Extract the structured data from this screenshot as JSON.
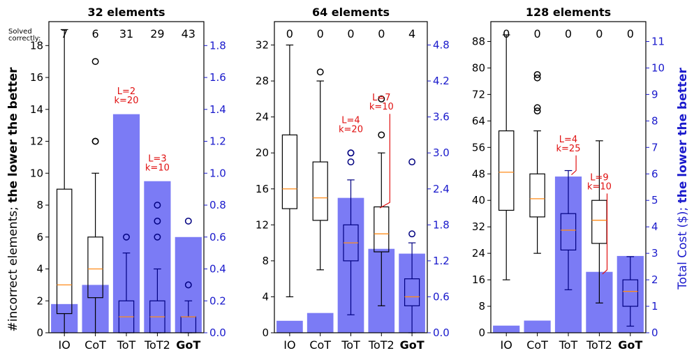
{
  "figure": {
    "left_ylabel_plain": "#incorrect elements; ",
    "left_ylabel_bold": "the lower the better",
    "right_ylabel_plain": "Total Cost ($); ",
    "right_ylabel_bold": "the lower the better",
    "solved_label_line1": "Solved",
    "solved_label_line2": "correctly:",
    "colors": {
      "bar": "#7b7bf5",
      "box_outline": "#000000",
      "median": "#ff8c1a",
      "cost_axis": "#1a1acc",
      "annotation": "#e01010",
      "box_on_bar": "#000080"
    }
  },
  "chart_data": [
    {
      "type": "bar",
      "title": "32 elements",
      "categories": [
        "IO",
        "CoT",
        "ToT",
        "ToT2",
        "GoT"
      ],
      "bold_category": "GoT",
      "left_ylim": [
        0,
        19.5
      ],
      "left_ticks": [
        0,
        2,
        4,
        6,
        8,
        10,
        12,
        14,
        16,
        18
      ],
      "right_ylim": [
        0,
        1.95
      ],
      "right_ticks": [
        "0.0",
        "0.2",
        "0.4",
        "0.6",
        "0.8",
        "1.0",
        "1.2",
        "1.4",
        "1.6",
        "1.8"
      ],
      "solved": [
        "7",
        "6",
        "31",
        "29",
        "43"
      ],
      "cost": [
        0.18,
        0.3,
        1.37,
        0.95,
        0.6
      ],
      "boxes": [
        {
          "whislo": 0,
          "q1": 1.2,
          "med": 3,
          "q3": 9,
          "whishi": 19,
          "fliers": []
        },
        {
          "whislo": 0,
          "q1": 2.2,
          "med": 4,
          "q3": 6,
          "whishi": 10,
          "fliers": [
            12,
            12,
            17
          ]
        },
        {
          "whislo": 0,
          "q1": 0,
          "med": 1,
          "q3": 2,
          "whishi": 5,
          "fliers": [
            6
          ]
        },
        {
          "whislo": 0,
          "q1": 0,
          "med": 1,
          "q3": 2,
          "whishi": 4,
          "fliers": [
            6,
            7,
            8
          ]
        },
        {
          "whislo": 0,
          "q1": 0,
          "med": 1,
          "q3": 1,
          "whishi": 2,
          "fliers": [
            3,
            7
          ]
        }
      ],
      "annotations": [
        {
          "lines": [
            "L=2",
            "k=20"
          ],
          "cat": 2,
          "value": 14.2
        },
        {
          "lines": [
            "L=3",
            "k=10"
          ],
          "cat": 3,
          "value": 10
        }
      ]
    },
    {
      "type": "bar",
      "title": "64 elements",
      "categories": [
        "IO",
        "CoT",
        "ToT",
        "ToT2",
        "GoT"
      ],
      "bold_category": "GoT",
      "left_ylim": [
        0,
        34.6
      ],
      "left_ticks": [
        0,
        4,
        8,
        12,
        16,
        20,
        24,
        28,
        32
      ],
      "right_ylim": [
        0,
        5.19
      ],
      "right_ticks": [
        "0.0",
        "0.6",
        "1.2",
        "1.8",
        "2.4",
        "3.0",
        "3.6",
        "4.2",
        "4.8"
      ],
      "solved": [
        "0",
        "0",
        "0",
        "0",
        "4"
      ],
      "cost": [
        0.2,
        0.33,
        2.25,
        1.4,
        1.32
      ],
      "boxes": [
        {
          "whislo": 4,
          "q1": 13.8,
          "med": 16,
          "q3": 22,
          "whishi": 32,
          "fliers": []
        },
        {
          "whislo": 7,
          "q1": 12.5,
          "med": 15,
          "q3": 19,
          "whishi": 28,
          "fliers": [
            29
          ]
        },
        {
          "whislo": 2,
          "q1": 8,
          "med": 10,
          "q3": 12,
          "whishi": 17,
          "fliers": [
            19,
            20,
            20
          ]
        },
        {
          "whislo": 3,
          "q1": 9,
          "med": 11,
          "q3": 14,
          "whishi": 20,
          "fliers": [
            22,
            26
          ]
        },
        {
          "whislo": 0,
          "q1": 3,
          "med": 4,
          "q3": 6,
          "whishi": 10,
          "fliers": [
            11,
            19
          ]
        }
      ],
      "annotations": [
        {
          "lines": [
            "L=4",
            "k=20"
          ],
          "cat": 2,
          "value": 22
        },
        {
          "lines": [
            "L=7",
            "k=10"
          ],
          "cat": 3,
          "value": 24.5,
          "leader_to": 14.5,
          "leader_dx": 0.55
        }
      ]
    },
    {
      "type": "bar",
      "title": "128 elements",
      "categories": [
        "IO",
        "CoT",
        "ToT",
        "ToT2",
        "GoT"
      ],
      "bold_category": "GoT",
      "left_ylim": [
        0,
        94
      ],
      "left_ticks": [
        0,
        8,
        16,
        24,
        32,
        40,
        48,
        56,
        64,
        72,
        80,
        88
      ],
      "right_ylim": [
        0,
        11.75
      ],
      "right_ticks": [
        "0",
        "1",
        "2",
        "3",
        "4",
        "5",
        "6",
        "7",
        "8",
        "9",
        "10",
        "11"
      ],
      "solved": [
        "0",
        "0",
        "0",
        "0",
        "0"
      ],
      "cost": [
        0.27,
        0.46,
        5.9,
        2.3,
        2.9
      ],
      "boxes": [
        {
          "whislo": 16,
          "q1": 37,
          "med": 48.5,
          "q3": 61,
          "whishi": 90,
          "fliers": []
        },
        {
          "whislo": 24,
          "q1": 35,
          "med": 40.5,
          "q3": 48,
          "whishi": 61,
          "fliers": [
            67,
            68,
            77,
            78
          ]
        },
        {
          "whislo": 13,
          "q1": 25,
          "med": 31,
          "q3": 36,
          "whishi": 49,
          "fliers": []
        },
        {
          "whislo": 9,
          "q1": 27,
          "med": 34,
          "q3": 40,
          "whishi": 58,
          "fliers": []
        },
        {
          "whislo": 2,
          "q1": 8,
          "med": 12.5,
          "q3": 16,
          "whishi": 23,
          "fliers": []
        }
      ],
      "annotations": [
        {
          "lines": [
            "L=4",
            "k=25"
          ],
          "cat": 2,
          "value": 54,
          "leader_to": 49
        },
        {
          "lines": [
            "L=9",
            "k=10"
          ],
          "cat": 3,
          "value": 42.5,
          "leader_to": 19
        }
      ]
    }
  ]
}
